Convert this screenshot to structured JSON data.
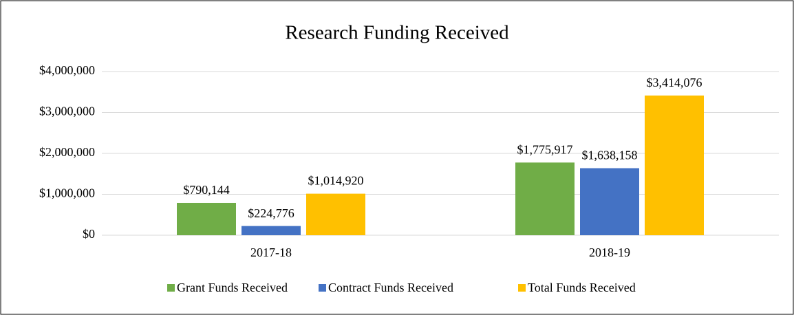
{
  "chart_data": {
    "type": "bar",
    "title": "Research Funding Received",
    "categories": [
      "2017-18",
      "2018-19"
    ],
    "series": [
      {
        "name": "Grant Funds Received",
        "color": "#70ad47",
        "values": [
          790144,
          1775917
        ],
        "value_labels": [
          "$790,144",
          "$1,775,917"
        ]
      },
      {
        "name": "Contract Funds Received",
        "color": "#4472c4",
        "values": [
          224776,
          1638158
        ],
        "value_labels": [
          "$224,776",
          "$1,638,158"
        ]
      },
      {
        "name": "Total Funds Received",
        "color": "#ffc000",
        "values": [
          1014920,
          3414076
        ],
        "value_labels": [
          "$1,014,920",
          "$3,414,076"
        ]
      }
    ],
    "ylim": [
      0,
      4000000
    ],
    "yticks": [
      {
        "value": 0,
        "label": "$0"
      },
      {
        "value": 1000000,
        "label": "$1,000,000"
      },
      {
        "value": 2000000,
        "label": "$2,000,000"
      },
      {
        "value": 3000000,
        "label": "$3,000,000"
      },
      {
        "value": 4000000,
        "label": "$4,000,000"
      }
    ],
    "grid": true,
    "legend": "bottom"
  }
}
